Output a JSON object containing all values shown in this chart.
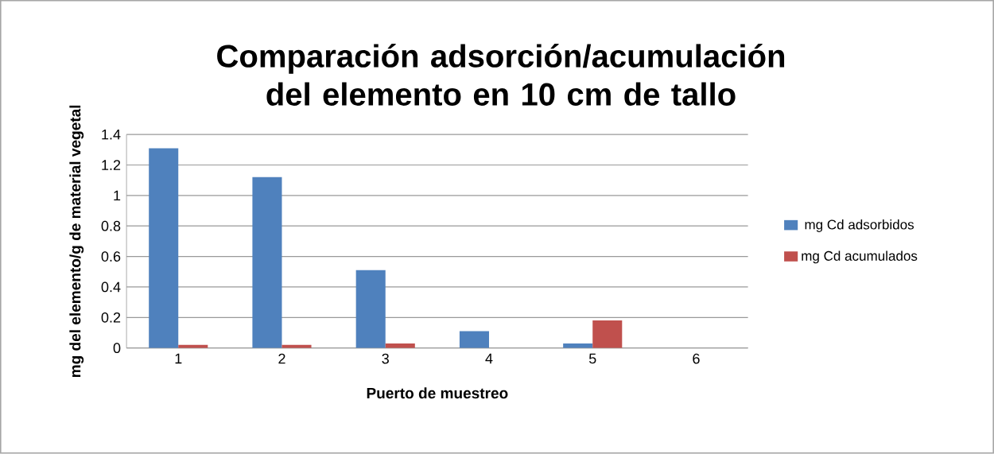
{
  "chart_data": {
    "type": "bar",
    "title": "Comparación adsorción/acumulación del elemento en 10 cm de tallo",
    "xlabel": "Puerto de muestreo",
    "ylabel": "mg del elemento/g de material vegetal",
    "categories": [
      "1",
      "2",
      "3",
      "4",
      "5",
      "6"
    ],
    "series": [
      {
        "name": "mg Cd adsorbidos",
        "color": "#4f81bd",
        "values": [
          1.31,
          1.12,
          0.51,
          0.11,
          0.03,
          0
        ]
      },
      {
        "name": "mg Cd acumulados",
        "color": "#c0504d",
        "values": [
          0.02,
          0.02,
          0.03,
          0,
          0.18,
          0
        ]
      }
    ],
    "ylim": [
      0,
      1.4
    ],
    "yticks": [
      0,
      0.2,
      0.4,
      0.6,
      0.8,
      1,
      1.2,
      1.4
    ],
    "grid": "y",
    "legend": "right"
  }
}
